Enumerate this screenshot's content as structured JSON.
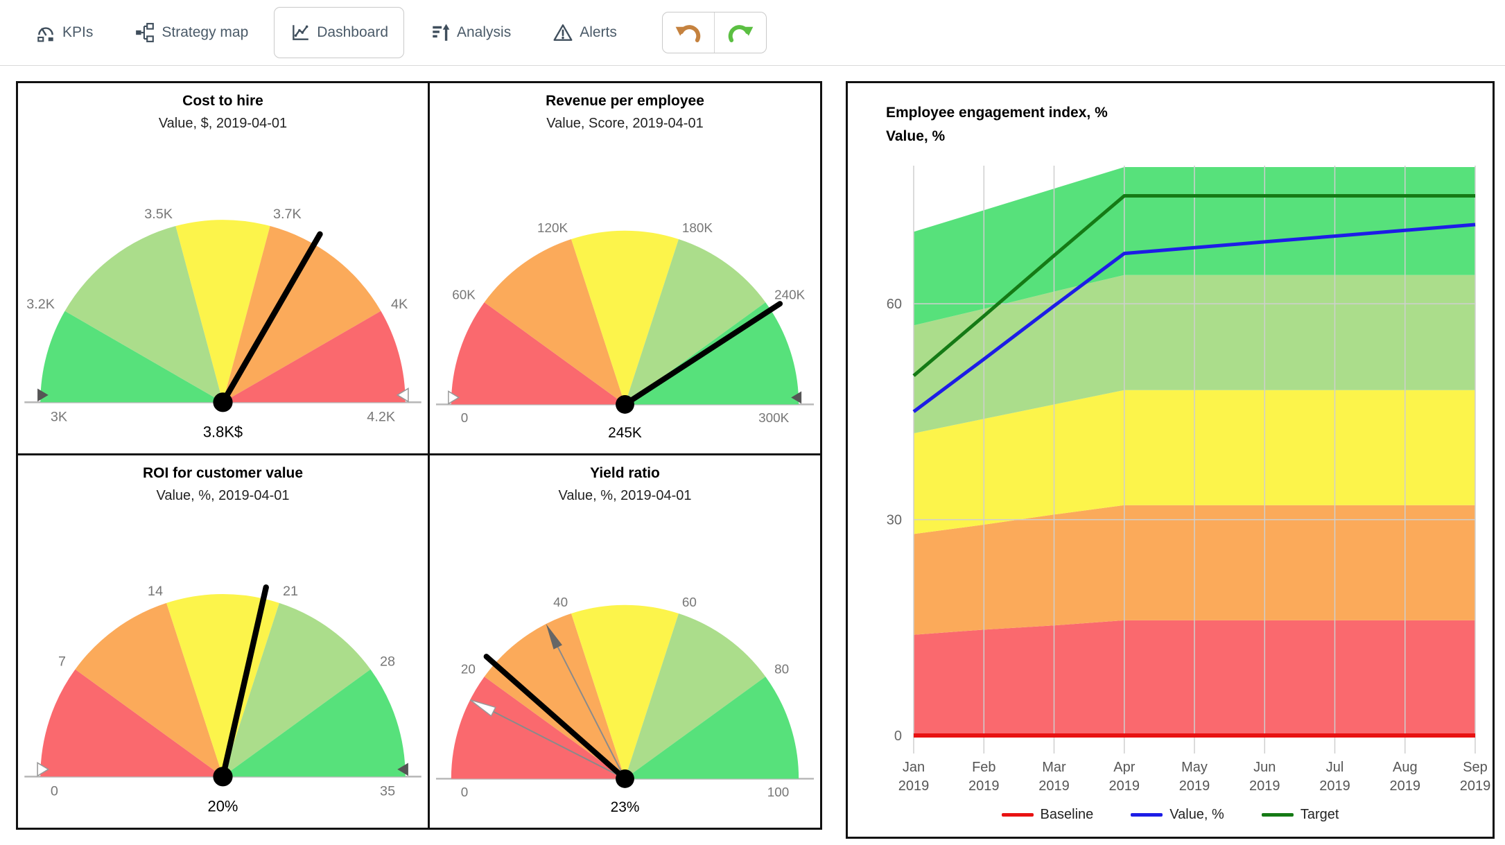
{
  "tabs": [
    {
      "label": "KPIs",
      "active": false
    },
    {
      "label": "Strategy map",
      "active": false
    },
    {
      "label": "Dashboard",
      "active": true
    },
    {
      "label": "Analysis",
      "active": false
    },
    {
      "label": "Alerts",
      "active": false
    }
  ],
  "colors": {
    "green": "#57e17b",
    "lightgreen": "#abdd8b",
    "yellow": "#fcf44b",
    "orange": "#fbaa5a",
    "red": "#fa696e",
    "needle": "#000000",
    "baseline_line": "#e81212",
    "value_line": "#1d1de6",
    "target_line": "#157a15",
    "grid": "#cfcfcf",
    "undo_icon": "#c5823f",
    "redo_icon": "#5bbf42"
  },
  "chart_data": [
    {
      "type": "gauge",
      "title": "Cost to hire",
      "subtitle": "Value, $, 2019-04-01",
      "min": 3000,
      "max": 4200,
      "min_label": "3K",
      "max_label": "4.2K",
      "min_marker": "filled",
      "max_marker": "hollow",
      "segments": [
        {
          "to": 3200,
          "color": "#57e17b",
          "label": "3.2K"
        },
        {
          "to": 3500,
          "color": "#abdd8b",
          "label": "3.5K"
        },
        {
          "to": 3700,
          "color": "#fcf44b",
          "label": "3.7K"
        },
        {
          "to": 4000,
          "color": "#fbaa5a",
          "label": "4K"
        },
        {
          "to": 4200,
          "color": "#fa696e",
          "label": null
        }
      ],
      "value": 3800,
      "value_label": "3.8K$"
    },
    {
      "type": "gauge",
      "title": "Revenue per employee",
      "subtitle": "Value, Score, 2019-04-01",
      "min": 0,
      "max": 300000,
      "min_label": "0",
      "max_label": "300K",
      "min_marker": "hollow",
      "max_marker": "filled",
      "segments": [
        {
          "to": 60000,
          "color": "#fa696e",
          "label": "60K"
        },
        {
          "to": 120000,
          "color": "#fbaa5a",
          "label": "120K"
        },
        {
          "to": 180000,
          "color": "#fcf44b",
          "label": "180K"
        },
        {
          "to": 240000,
          "color": "#abdd8b",
          "label": "240K"
        },
        {
          "to": 300000,
          "color": "#57e17b",
          "label": null
        }
      ],
      "value": 245000,
      "value_label": "245K"
    },
    {
      "type": "gauge",
      "title": "ROI for customer value",
      "subtitle": "Value, %, 2019-04-01",
      "min": 0,
      "max": 35,
      "min_label": "0",
      "max_label": "35",
      "min_marker": "hollow",
      "max_marker": "filled",
      "segments": [
        {
          "to": 7,
          "color": "#fa696e",
          "label": "7"
        },
        {
          "to": 14,
          "color": "#fbaa5a",
          "label": "14"
        },
        {
          "to": 21,
          "color": "#fcf44b",
          "label": "21"
        },
        {
          "to": 28,
          "color": "#abdd8b",
          "label": "28"
        },
        {
          "to": 35,
          "color": "#57e17b",
          "label": null
        }
      ],
      "value": 20,
      "value_label": "20%"
    },
    {
      "type": "gauge",
      "title": "Yield ratio",
      "subtitle": "Value, %, 2019-04-01",
      "min": 0,
      "max": 100,
      "min_label": "0",
      "max_label": "100",
      "min_marker": "none",
      "max_marker": "none",
      "segments": [
        {
          "to": 20,
          "color": "#fa696e",
          "label": "20"
        },
        {
          "to": 40,
          "color": "#fbaa5a",
          "label": "40"
        },
        {
          "to": 60,
          "color": "#fcf44b",
          "label": "60"
        },
        {
          "to": 80,
          "color": "#abdd8b",
          "label": "80"
        },
        {
          "to": 100,
          "color": "#57e17b",
          "label": null
        }
      ],
      "pointers": [
        {
          "name": "baseline",
          "value": 15,
          "style": "hollow"
        },
        {
          "name": "target",
          "value": 35,
          "style": "filled"
        }
      ],
      "value": 23,
      "value_label": "23%"
    },
    {
      "type": "area",
      "title": "Employee engagement index, %",
      "subtitle": "Value, %",
      "x_labels": [
        [
          "Jan",
          "2019"
        ],
        [
          "Feb",
          "2019"
        ],
        [
          "Mar",
          "2019"
        ],
        [
          "Apr",
          "2019"
        ],
        [
          "May",
          "2019"
        ],
        [
          "Jun",
          "2019"
        ],
        [
          "Jul",
          "2019"
        ],
        [
          "Aug",
          "2019"
        ],
        [
          "Sep",
          "2019"
        ]
      ],
      "y_ticks": [
        0,
        30,
        60
      ],
      "ylim": [
        0,
        79
      ],
      "bands": [
        {
          "name": "red-zone",
          "color": "#fa696e",
          "upper": [
            14,
            14.7,
            15.3,
            16,
            16,
            16,
            16,
            16,
            16
          ]
        },
        {
          "name": "orange-zone",
          "color": "#fbaa5a",
          "upper": [
            28,
            29.3,
            30.7,
            32,
            32,
            32,
            32,
            32,
            32
          ]
        },
        {
          "name": "yellow-zone",
          "color": "#fcf44b",
          "upper": [
            42,
            44,
            46,
            48,
            48,
            48,
            48,
            48,
            48
          ]
        },
        {
          "name": "lightgreen-zone",
          "color": "#abdd8b",
          "upper": [
            57,
            59.3,
            61.7,
            64,
            64,
            64,
            64,
            64,
            64
          ]
        },
        {
          "name": "green-zone",
          "color": "#57e17b",
          "upper": [
            70,
            73,
            76,
            79,
            79,
            79,
            79,
            79,
            79
          ]
        }
      ],
      "lines": [
        {
          "name": "Baseline",
          "color": "#e81212",
          "width": 6,
          "values": [
            0,
            0,
            0,
            0,
            0,
            0,
            0,
            0,
            0
          ]
        },
        {
          "name": "Value, %",
          "color": "#1d1de6",
          "width": 5,
          "values": [
            45,
            52.3,
            59.7,
            67,
            67.8,
            68.6,
            69.4,
            70.2,
            71
          ]
        },
        {
          "name": "Target",
          "color": "#157a15",
          "width": 5,
          "values": [
            50,
            58.3,
            66.7,
            75,
            75,
            75,
            75,
            75,
            75
          ]
        }
      ],
      "legend": [
        "Baseline",
        "Value, %",
        "Target"
      ]
    }
  ]
}
